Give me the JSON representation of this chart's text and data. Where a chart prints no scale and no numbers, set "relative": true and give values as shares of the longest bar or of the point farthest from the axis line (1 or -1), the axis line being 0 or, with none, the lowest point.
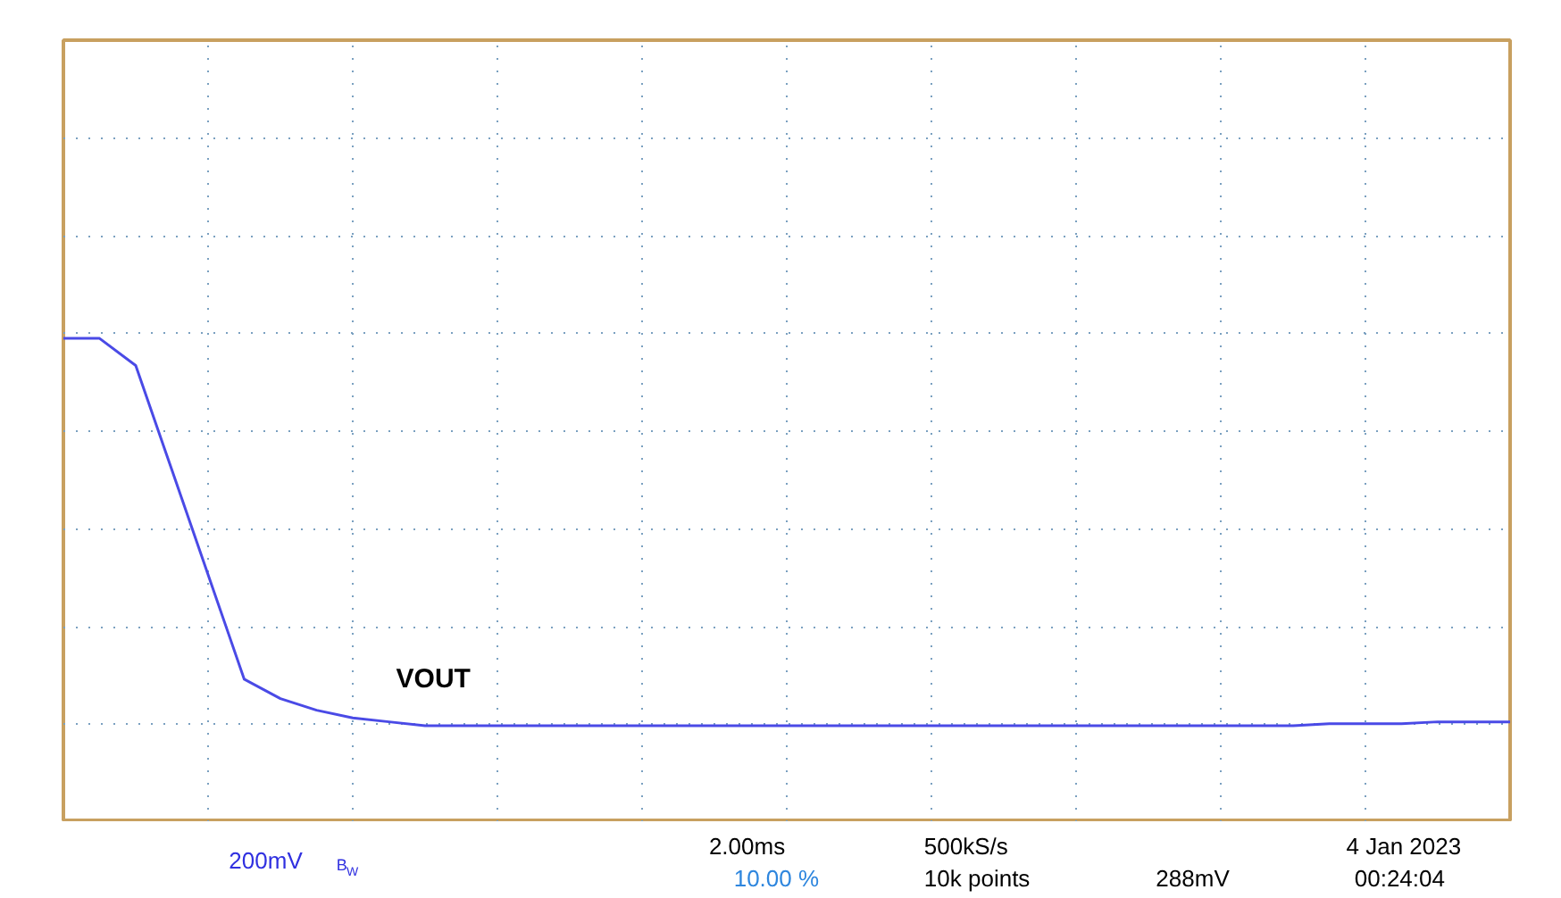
{
  "chart_data": {
    "type": "line",
    "relative": true,
    "grid": true,
    "categories": [
      null,
      null,
      null,
      null,
      null,
      null,
      null,
      null,
      null,
      null,
      null,
      null,
      null,
      null,
      null,
      null,
      null,
      null,
      null,
      null,
      null,
      null,
      null,
      null,
      null,
      null,
      null,
      null,
      null,
      null,
      null,
      null,
      null,
      null,
      null,
      null,
      null,
      null,
      null,
      null,
      null
    ],
    "series": [
      {
        "name": "VOUT",
        "color": "#4a4ae6",
        "values": [
          1,
          1,
          0.93,
          0.66,
          0.39,
          0.12,
          0.07,
          0.04,
          0.02,
          0.01,
          0,
          0,
          0,
          0,
          0,
          0,
          0,
          0,
          0,
          0,
          0,
          0,
          0,
          0,
          0,
          0,
          0,
          0,
          0,
          0,
          0,
          0,
          0,
          0,
          0,
          0.005,
          0.005,
          0.005,
          0.01,
          0.01,
          0.01
        ]
      }
    ],
    "annotations": [
      "200mV",
      "B$_{W}$",
      "2.00ms",
      "500kS/s",
      "10.00 %",
      "10k points",
      "288mV",
      "4 Jan 2023",
      "00:24:04"
    ]
  }
}
